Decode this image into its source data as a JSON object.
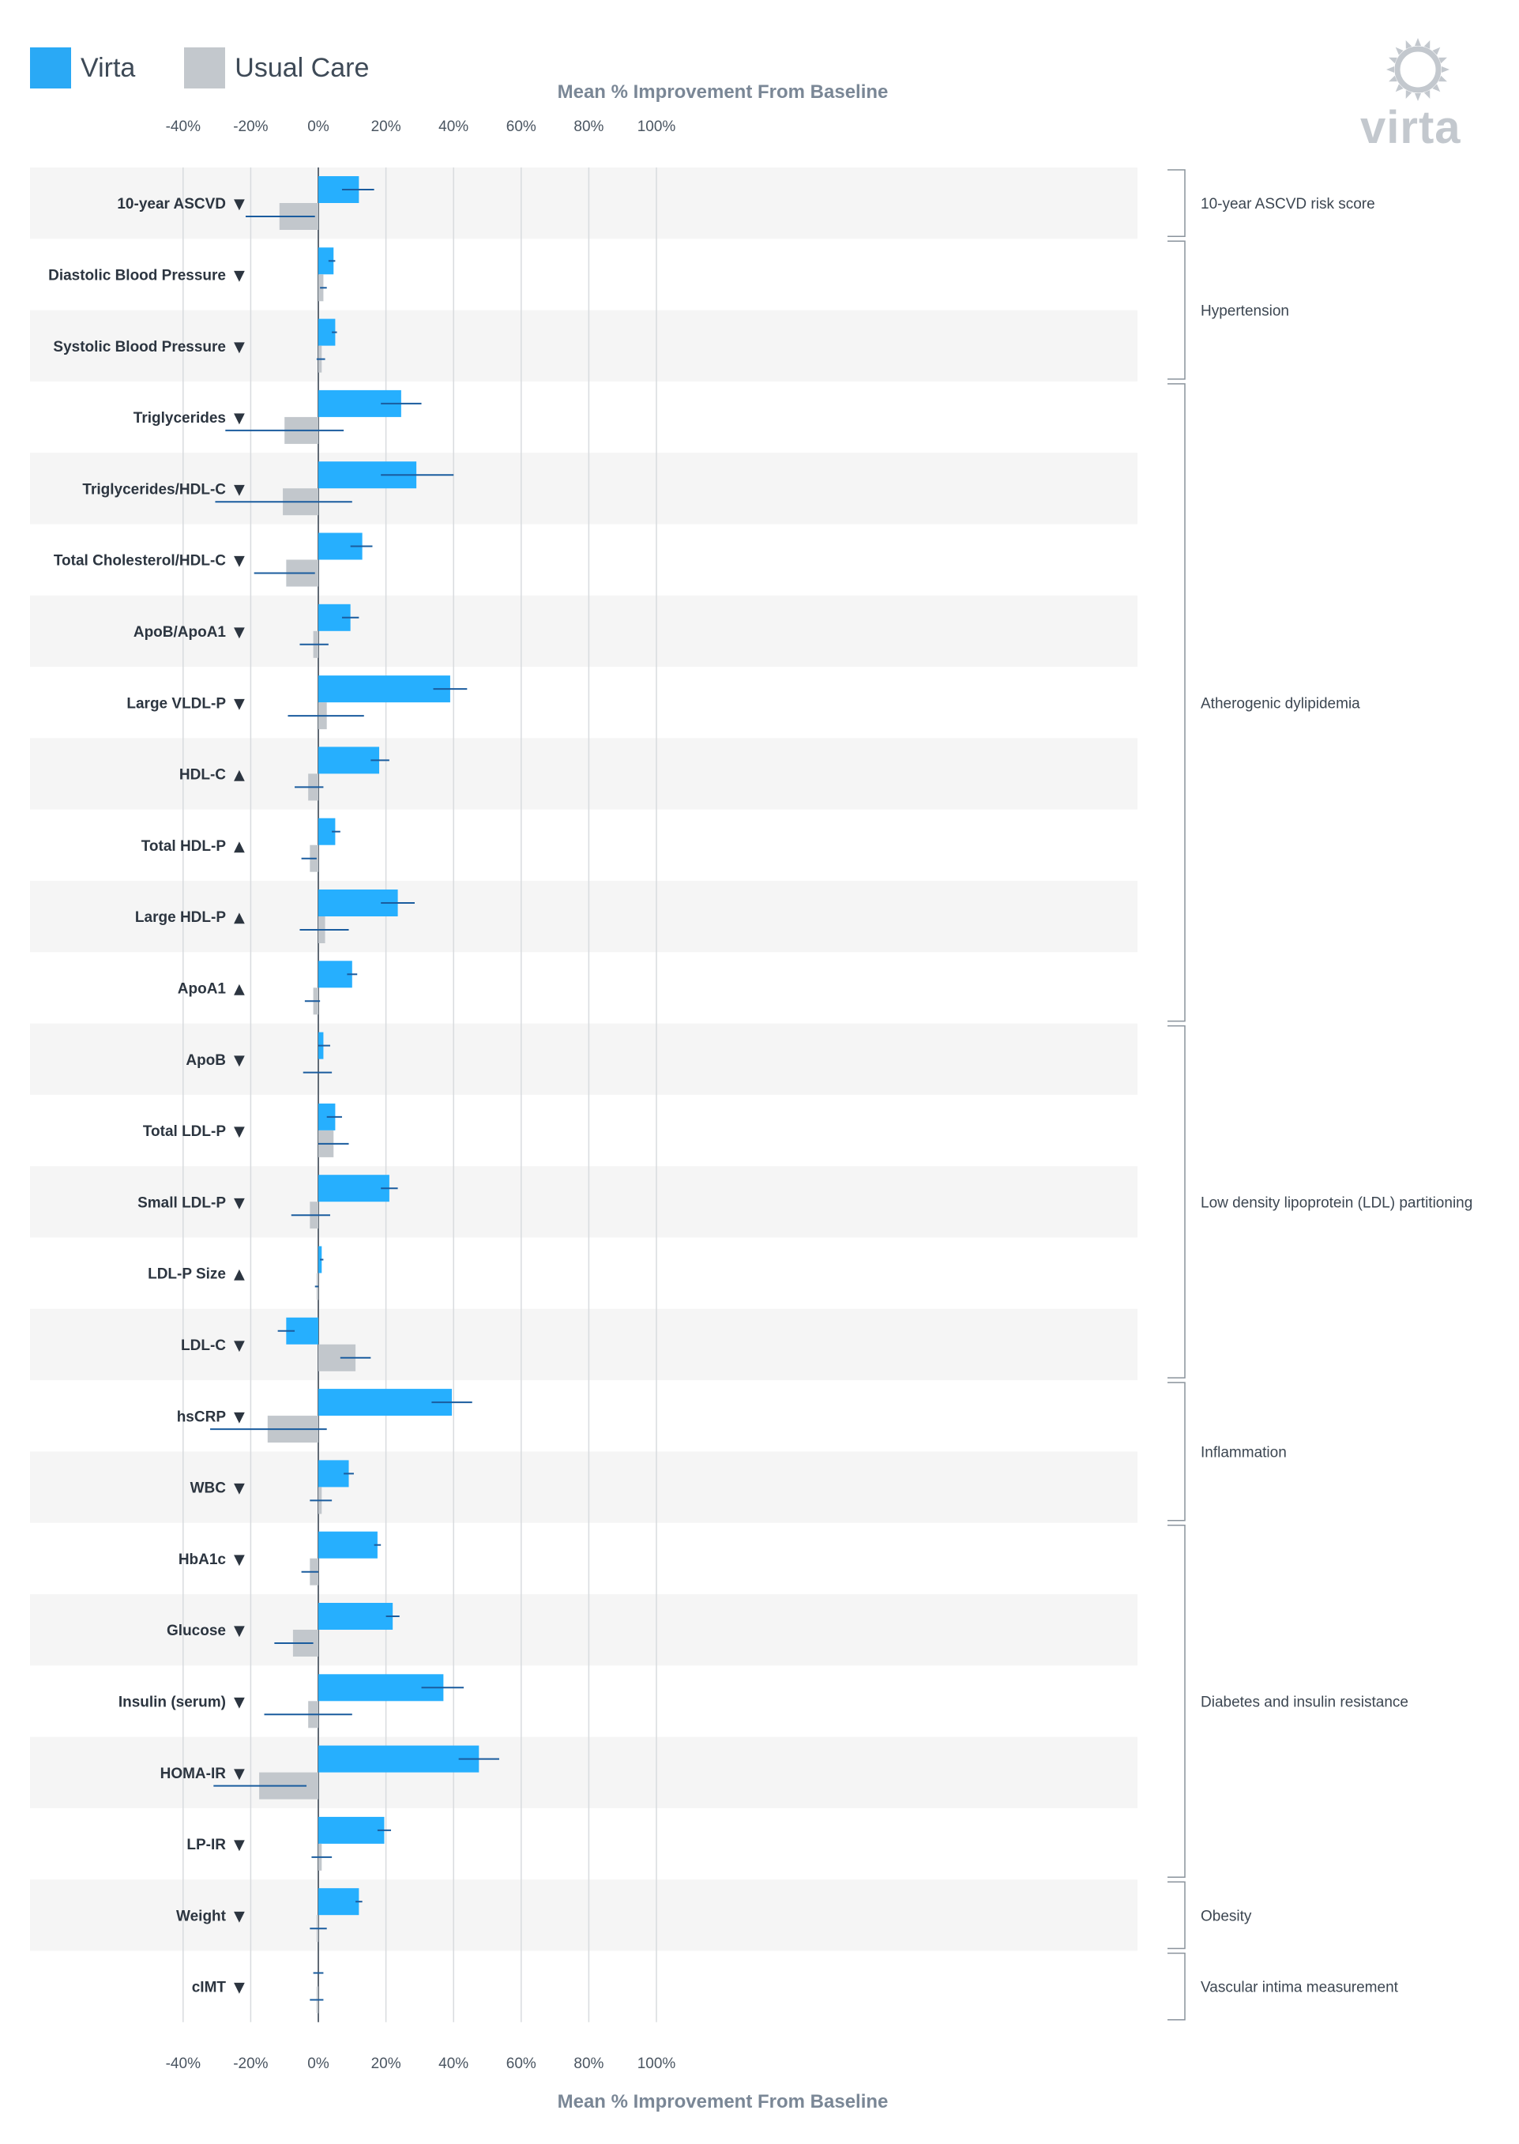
{
  "legend": [
    {
      "label": "Virta",
      "color": "#2aa9f5"
    },
    {
      "label": "Usual Care",
      "color": "#c3c8cd"
    }
  ],
  "brand": {
    "name": "virta",
    "icon": "sun-ring-icon"
  },
  "colors": {
    "virta": "#26affe",
    "usual_care": "#c2c7cc",
    "error_bar": "#1a5c9e",
    "row_alt": "#f5f5f5",
    "axis_label": "#7a8796"
  },
  "chart_data": {
    "type": "bar",
    "orientation": "horizontal",
    "xlabel": "Mean % Improvement From Baseline",
    "xlim": [
      -40,
      100
    ],
    "xticks": [
      -40,
      -20,
      0,
      20,
      40,
      60,
      80,
      100
    ],
    "xtick_labels": [
      "-40%",
      "-20%",
      "0%",
      "20%",
      "40%",
      "60%",
      "80%",
      "100%"
    ],
    "grid": true,
    "legend_position": "top-left",
    "categories": [
      {
        "label": "10-year ASCVD",
        "dir": "▼"
      },
      {
        "label": "Diastolic Blood Pressure",
        "dir": "▼"
      },
      {
        "label": "Systolic Blood Pressure",
        "dir": "▼"
      },
      {
        "label": "Triglycerides",
        "dir": "▼"
      },
      {
        "label": "Triglycerides/HDL-C",
        "dir": "▼"
      },
      {
        "label": "Total Cholesterol/HDL-C",
        "dir": "▼"
      },
      {
        "label": "ApoB/ApoA1",
        "dir": "▼"
      },
      {
        "label": "Large VLDL-P",
        "dir": "▼"
      },
      {
        "label": "HDL-C",
        "dir": "▲"
      },
      {
        "label": "Total HDL-P",
        "dir": "▲"
      },
      {
        "label": "Large HDL-P",
        "dir": "▲"
      },
      {
        "label": "ApoA1",
        "dir": "▲"
      },
      {
        "label": "ApoB",
        "dir": "▼"
      },
      {
        "label": "Total LDL-P",
        "dir": "▼"
      },
      {
        "label": "Small LDL-P",
        "dir": "▼"
      },
      {
        "label": "LDL-P Size",
        "dir": "▲"
      },
      {
        "label": "LDL-C",
        "dir": "▼"
      },
      {
        "label": "hsCRP",
        "dir": "▼"
      },
      {
        "label": "WBC",
        "dir": "▼"
      },
      {
        "label": "HbA1c",
        "dir": "▼"
      },
      {
        "label": "Glucose",
        "dir": "▼"
      },
      {
        "label": "Insulin (serum)",
        "dir": "▼"
      },
      {
        "label": "HOMA-IR",
        "dir": "▼"
      },
      {
        "label": "LP-IR",
        "dir": "▼"
      },
      {
        "label": "Weight",
        "dir": "▼"
      },
      {
        "label": "cIMT",
        "dir": "▼"
      }
    ],
    "series": [
      {
        "name": "Virta",
        "values": [
          12,
          4.5,
          5,
          24.5,
          29,
          13,
          9.5,
          39,
          18,
          5,
          23.5,
          10,
          1.5,
          5,
          21,
          1,
          -9.5,
          39.5,
          9,
          17.5,
          22,
          37,
          47.5,
          19.5,
          12,
          0
        ],
        "ci": [
          [
            7,
            16.5
          ],
          [
            3,
            5
          ],
          [
            4,
            5.5
          ],
          [
            18.5,
            30.5
          ],
          [
            18.5,
            40
          ],
          [
            9.5,
            16
          ],
          [
            7,
            12
          ],
          [
            34,
            44
          ],
          [
            15.5,
            21
          ],
          [
            4,
            6.5
          ],
          [
            18.5,
            28.5
          ],
          [
            8.5,
            11.5
          ],
          [
            0,
            3.5
          ],
          [
            2.5,
            7
          ],
          [
            18.5,
            23.5
          ],
          [
            0.5,
            1.5
          ],
          [
            -12,
            -7
          ],
          [
            33.5,
            45.5
          ],
          [
            7.5,
            10.5
          ],
          [
            16.5,
            18.5
          ],
          [
            20,
            24
          ],
          [
            30.5,
            43
          ],
          [
            41.5,
            53.5
          ],
          [
            17.5,
            21.5
          ],
          [
            11,
            13
          ],
          [
            -1.5,
            1.5
          ]
        ]
      },
      {
        "name": "Usual Care",
        "values": [
          -11.5,
          1.5,
          1,
          -10,
          -10.5,
          -9.5,
          -1.5,
          2.5,
          -3,
          -2.5,
          2,
          -1.5,
          0,
          4.5,
          -2.5,
          -0.5,
          11,
          -15,
          1,
          -2.5,
          -7.5,
          -3,
          -17.5,
          1,
          -0.5,
          -0.5
        ],
        "ci": [
          [
            -21.5,
            -1
          ],
          [
            0.5,
            2.5
          ],
          [
            -0.5,
            2
          ],
          [
            -27.5,
            7.5
          ],
          [
            -30.5,
            10
          ],
          [
            -19,
            -1
          ],
          [
            -5.5,
            3
          ],
          [
            -9,
            13.5
          ],
          [
            -7,
            1.5
          ],
          [
            -5,
            -0.5
          ],
          [
            -5.5,
            9
          ],
          [
            -4,
            0.5
          ],
          [
            -4.5,
            4
          ],
          [
            0,
            9
          ],
          [
            -8,
            3.5
          ],
          [
            -1,
            0
          ],
          [
            6.5,
            15.5
          ],
          [
            -32,
            2.5
          ],
          [
            -2.5,
            4
          ],
          [
            -5,
            0
          ],
          [
            -13,
            -1.5
          ],
          [
            -16,
            10
          ],
          [
            -31,
            -3.5
          ],
          [
            -2,
            4
          ],
          [
            -2.5,
            2.5
          ],
          [
            -2.5,
            1.5
          ]
        ]
      }
    ],
    "groups": [
      {
        "label": "10-year ASCVD risk score",
        "rows": [
          0,
          0
        ]
      },
      {
        "label": "Hypertension",
        "rows": [
          1,
          2
        ]
      },
      {
        "label": "Atherogenic dylipidemia",
        "rows": [
          3,
          11
        ]
      },
      {
        "label": "Low density lipoprotein (LDL) partitioning",
        "rows": [
          12,
          16
        ]
      },
      {
        "label": "Inflammation",
        "rows": [
          17,
          18
        ]
      },
      {
        "label": "Diabetes and insulin resistance",
        "rows": [
          19,
          23
        ]
      },
      {
        "label": "Obesity",
        "rows": [
          24,
          24
        ]
      },
      {
        "label": "Vascular intima measurement",
        "rows": [
          25,
          25
        ]
      }
    ]
  }
}
